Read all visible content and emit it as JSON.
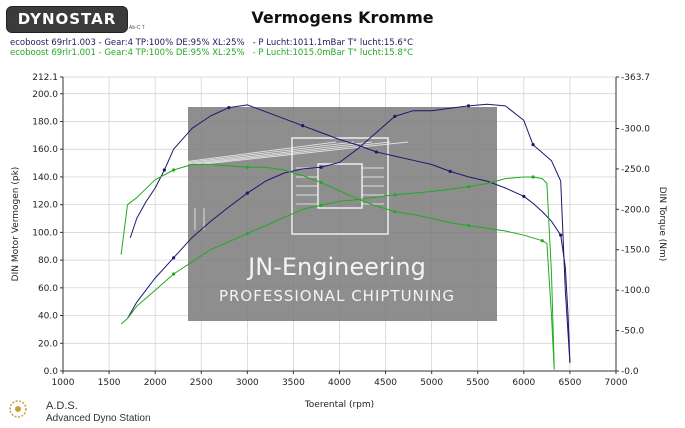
{
  "header": {
    "brand": "DYNOSTAR",
    "brand_small": "Ab-C T",
    "title": "Vermogens Kromme"
  },
  "runs": [
    {
      "text": "ecoboost 69rlr1.003 - Gear:4 TP:100% DE:95% XL:25%   - P Lucht:1011.1mBar T° lucht:15.6°C",
      "color": "#1a1a5e"
    },
    {
      "text": "ecoboost 69rlr1.001 - Gear:4 TP:100% DE:95% XL:25%   - P Lucht:1015.0mBar T° lucht:15.8°C",
      "color": "#22aa22"
    }
  ],
  "watermark": {
    "line1": "JN-Engineering",
    "line2": "PROFESSIONAL CHIPTUNING"
  },
  "footer": {
    "name": "A.D.S.",
    "subtitle": "Advanced Dyno Station"
  },
  "colors": {
    "run1": "#1a1a6e",
    "run2": "#22aa22",
    "grid": "#cfcfcf"
  },
  "chart_data": {
    "type": "line",
    "xlabel": "Toerental (rpm)",
    "ylabel": "DIN Motor Vermogen (pk)",
    "y2label": "DIN Torque (Nm)",
    "xlim": [
      1000,
      7000
    ],
    "ylim": [
      0,
      212.1
    ],
    "y2lim": [
      0,
      363.7
    ],
    "grid": true,
    "x_ticks": [
      "1000",
      "1500",
      "2000",
      "2500",
      "3000",
      "3500",
      "4000",
      "4500",
      "5000",
      "5500",
      "6000",
      "6500",
      "7000"
    ],
    "y_ticks": [
      "0.0",
      "20.0",
      "40.0",
      "60.0",
      "80.0",
      "100.0",
      "120.0",
      "140.0",
      "160.0",
      "180.0",
      "200.0",
      "212.1"
    ],
    "y2_ticks": [
      "0.0",
      "50.0",
      "100.0",
      "150.0",
      "200.0",
      "250.0",
      "300.0",
      "363.7"
    ],
    "series": [
      {
        "name": "ecoboost 69rlr1.003",
        "kind": "power",
        "axis": "left",
        "color": "#1a1a6e",
        "x": [
          1730,
          1800,
          1900,
          2000,
          2100,
          2200,
          2400,
          2600,
          2800,
          3000,
          3200,
          3400,
          3600,
          3800,
          4000,
          4200,
          4400,
          4600,
          4800,
          5000,
          5200,
          5400,
          5600,
          5800,
          6000,
          6100,
          6200,
          6300,
          6400,
          6450,
          6480,
          6500
        ],
        "y": [
          96,
          110,
          122,
          132,
          145,
          160,
          175,
          184,
          190,
          192,
          187,
          182,
          177,
          172,
          167,
          163,
          158,
          155,
          152,
          149,
          144,
          140,
          137,
          132,
          126,
          121,
          115,
          108,
          98,
          75,
          40,
          6
        ]
      },
      {
        "name": "ecoboost 69rlr1.003",
        "kind": "torque",
        "axis": "right",
        "color": "#1a1a6e",
        "x": [
          1700,
          1800,
          1900,
          2000,
          2200,
          2400,
          2600,
          2800,
          3000,
          3200,
          3400,
          3600,
          3800,
          4000,
          4200,
          4400,
          4600,
          4800,
          5000,
          5200,
          5400,
          5600,
          5800,
          6000,
          6100,
          6200,
          6300,
          6400,
          6450,
          6500
        ],
        "y": [
          65,
          85,
          100,
          115,
          140,
          165,
          185,
          203,
          220,
          235,
          245,
          250,
          252,
          258,
          275,
          295,
          315,
          322,
          322,
          325,
          328,
          330,
          328,
          310,
          280,
          270,
          260,
          235,
          100,
          10
        ]
      },
      {
        "name": "ecoboost 69rlr1.001",
        "kind": "power",
        "axis": "left",
        "color": "#22aa22",
        "x": [
          1630,
          1700,
          1800,
          2000,
          2200,
          2400,
          2600,
          2800,
          3000,
          3200,
          3400,
          3600,
          3800,
          4000,
          4200,
          4400,
          4600,
          4800,
          5000,
          5200,
          5400,
          5600,
          5800,
          6000,
          6200,
          6250,
          6300,
          6330
        ],
        "y": [
          84,
          120,
          125,
          138,
          145,
          149,
          149,
          148,
          147,
          147,
          145,
          141,
          136,
          130,
          124,
          119,
          115,
          113,
          110,
          107,
          105,
          103,
          101,
          98,
          94,
          92,
          40,
          1
        ]
      },
      {
        "name": "ecoboost 69rlr1.001",
        "kind": "torque",
        "axis": "right",
        "color": "#22aa22",
        "x": [
          1630,
          1700,
          1800,
          2000,
          2200,
          2400,
          2600,
          2800,
          3000,
          3200,
          3400,
          3600,
          3800,
          4000,
          4200,
          4400,
          4600,
          4800,
          5000,
          5200,
          5400,
          5600,
          5800,
          6000,
          6100,
          6200,
          6250,
          6300,
          6330
        ],
        "y": [
          58,
          65,
          80,
          100,
          120,
          135,
          150,
          160,
          170,
          180,
          190,
          200,
          205,
          210,
          212,
          215,
          218,
          220,
          222,
          225,
          228,
          232,
          238,
          240,
          240,
          238,
          232,
          120,
          5
        ]
      }
    ]
  }
}
